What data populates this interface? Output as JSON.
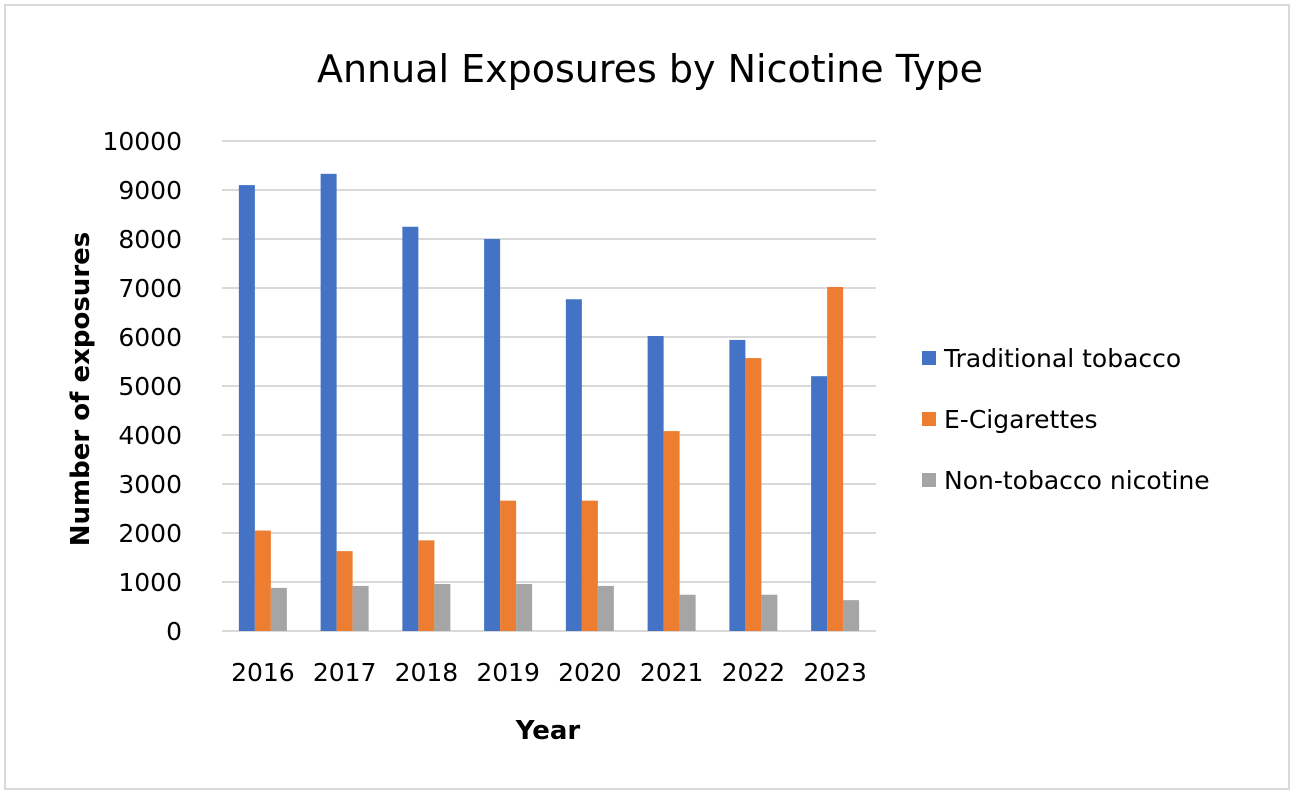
{
  "chart_data": {
    "type": "bar",
    "title": "Annual Exposures by Nicotine Type",
    "xlabel": "Year",
    "ylabel": "Number of exposures",
    "categories": [
      "2016",
      "2017",
      "2018",
      "2019",
      "2020",
      "2021",
      "2022",
      "2023"
    ],
    "series": [
      {
        "name": "Traditional tobacco",
        "color": "#4472C4",
        "values": [
          9100,
          9330,
          8250,
          8000,
          6770,
          6020,
          5940,
          5200
        ]
      },
      {
        "name": "E-Cigarettes",
        "color": "#ED7D31",
        "values": [
          2050,
          1630,
          1850,
          2660,
          2660,
          4080,
          5570,
          7020
        ]
      },
      {
        "name": "Non-tobacco nicotine",
        "color": "#A5A5A5",
        "values": [
          880,
          920,
          960,
          960,
          920,
          740,
          740,
          630
        ]
      }
    ],
    "ylim": [
      0,
      10000
    ],
    "yticks": [
      "0",
      "1000",
      "2000",
      "3000",
      "4000",
      "5000",
      "6000",
      "7000",
      "8000",
      "9000",
      "10000"
    ],
    "grid": true,
    "gridColor": "#d9d9d9",
    "legend": "right"
  }
}
